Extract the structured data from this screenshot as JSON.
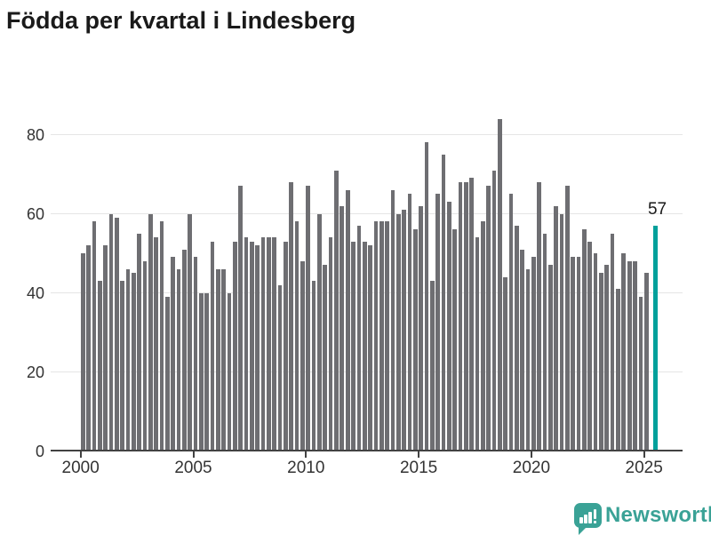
{
  "title": "Födda per kvartal i Lindesberg",
  "branding": {
    "logo_text": "Newsworthy"
  },
  "chart_data": {
    "type": "bar",
    "title": "Födda per kvartal i Lindesberg",
    "frequency": "quarterly",
    "x_start": "2000 Q1",
    "x_end": "2025 Q2",
    "x_tick_labels": [
      "2000",
      "2005",
      "2010",
      "2015",
      "2020",
      "2025"
    ],
    "y_tick_values": [
      0,
      20,
      40,
      60,
      80
    ],
    "ylim": [
      0,
      88
    ],
    "grid": true,
    "bar_color": "#6e6e72",
    "highlight_color": "#00a09b",
    "values": [
      50,
      52,
      58,
      43,
      52,
      60,
      59,
      43,
      46,
      45,
      55,
      48,
      60,
      54,
      58,
      39,
      49,
      46,
      51,
      60,
      49,
      40,
      40,
      53,
      46,
      46,
      40,
      53,
      67,
      54,
      53,
      52,
      54,
      54,
      54,
      42,
      53,
      68,
      58,
      48,
      67,
      43,
      60,
      47,
      54,
      71,
      62,
      66,
      53,
      57,
      53,
      52,
      58,
      58,
      58,
      66,
      60,
      61,
      65,
      56,
      62,
      78,
      43,
      65,
      75,
      63,
      56,
      68,
      68,
      69,
      54,
      58,
      67,
      71,
      84,
      44,
      65,
      57,
      51,
      46,
      49,
      68,
      55,
      47,
      62,
      60,
      67,
      49,
      49,
      56,
      53,
      50,
      45,
      47,
      55,
      41,
      50,
      48,
      48,
      39,
      45,
      57
    ],
    "highlight_last": true,
    "highlight_value_label": "57"
  }
}
